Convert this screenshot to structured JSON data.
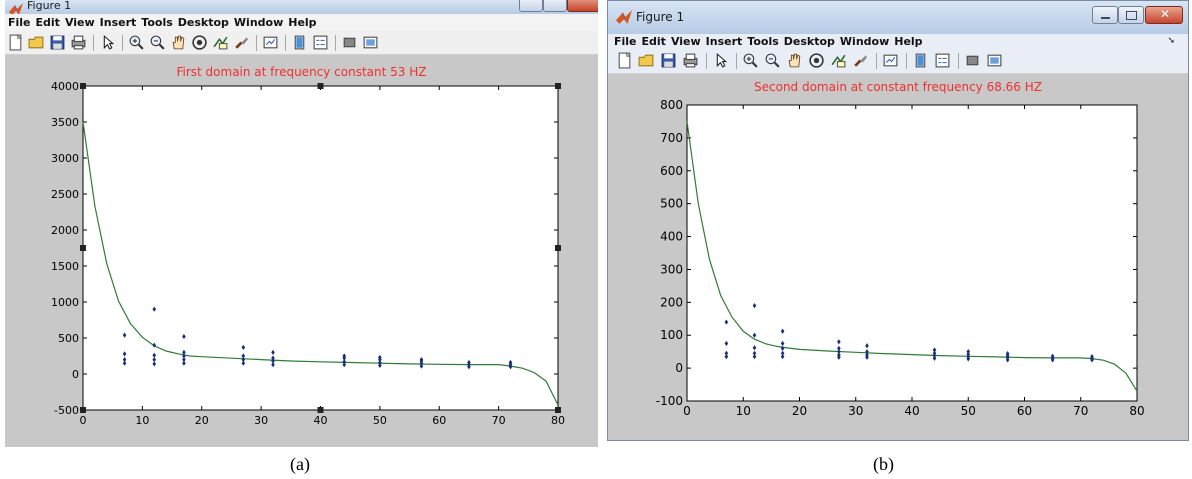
{
  "windows": [
    {
      "id": "a",
      "title": "Figure 1",
      "menu": [
        "File",
        "Edit",
        "View",
        "Insert",
        "Tools",
        "Desktop",
        "Window",
        "Help"
      ],
      "plot_title": "First domain at frequency constant 53 HZ",
      "caption": "(a)"
    },
    {
      "id": "b",
      "title": "Figure 1",
      "menu": [
        "File",
        "Edit",
        "View",
        "Insert",
        "Tools",
        "Desktop",
        "Window",
        "Help"
      ],
      "plot_title": "Second domain at constant frequency 68.66 HZ",
      "caption": "(b)"
    }
  ],
  "toolbar_icons": [
    "new-figure-icon",
    "open-file-icon",
    "save-icon",
    "print-icon",
    "edit-plot-arrow-icon",
    "zoom-in-icon",
    "zoom-out-icon",
    "pan-hand-icon",
    "rotate-3d-icon",
    "data-cursor-icon",
    "brush-icon",
    "link-plot-icon",
    "colorbar-icon",
    "legend-icon",
    "hide-plot-tools-icon",
    "show-plot-tools-icon"
  ],
  "colors": {
    "title_red": "#f03030",
    "fit_line": "#2e7d32",
    "points": "#1c2f7a",
    "window_bg": "#c8c8c8"
  },
  "chart_data": [
    {
      "type": "scatter",
      "title": "First domain at frequency constant 53 HZ",
      "xlim": [
        0,
        80
      ],
      "ylim": [
        -500,
        4000
      ],
      "xticks": [
        0,
        10,
        20,
        30,
        40,
        50,
        60,
        70,
        80
      ],
      "yticks": [
        -500,
        0,
        500,
        1000,
        1500,
        2000,
        2500,
        3000,
        3500,
        4000
      ],
      "grid": false,
      "series": [
        {
          "points": [
            [
              7,
              150
            ],
            [
              7,
              200
            ],
            [
              7,
              280
            ],
            [
              7,
              540
            ],
            [
              12,
              140
            ],
            [
              12,
              200
            ],
            [
              12,
              260
            ],
            [
              12,
              400
            ],
            [
              12,
              900
            ],
            [
              17,
              150
            ],
            [
              17,
              200
            ],
            [
              17,
              250
            ],
            [
              17,
              300
            ],
            [
              17,
              520
            ],
            [
              27,
              150
            ],
            [
              27,
              200
            ],
            [
              27,
              250
            ],
            [
              27,
              370
            ],
            [
              32,
              130
            ],
            [
              32,
              180
            ],
            [
              32,
              220
            ],
            [
              32,
              300
            ],
            [
              44,
              130
            ],
            [
              44,
              170
            ],
            [
              44,
              220
            ],
            [
              44,
              250
            ],
            [
              50,
              120
            ],
            [
              50,
              160
            ],
            [
              50,
              200
            ],
            [
              50,
              230
            ],
            [
              57,
              110
            ],
            [
              57,
              150
            ],
            [
              57,
              180
            ],
            [
              57,
              200
            ],
            [
              65,
              100
            ],
            [
              65,
              130
            ],
            [
              65,
              160
            ],
            [
              72,
              100
            ],
            [
              72,
              130
            ],
            [
              72,
              160
            ]
          ]
        },
        {
          "line": [
            [
              0,
              3500
            ],
            [
              2,
              2330
            ],
            [
              4,
              1530
            ],
            [
              6,
              1010
            ],
            [
              8,
              700
            ],
            [
              10,
              510
            ],
            [
              12,
              390
            ],
            [
              14,
              320
            ],
            [
              16,
              280
            ],
            [
              18,
              250
            ],
            [
              20,
              240
            ],
            [
              25,
              220
            ],
            [
              30,
              200
            ],
            [
              35,
              180
            ],
            [
              40,
              170
            ],
            [
              45,
              160
            ],
            [
              50,
              150
            ],
            [
              55,
              140
            ],
            [
              60,
              135
            ],
            [
              65,
              130
            ],
            [
              70,
              130
            ],
            [
              72,
              110
            ],
            [
              74,
              80
            ],
            [
              76,
              20
            ],
            [
              78,
              -100
            ],
            [
              80,
              -430
            ]
          ]
        }
      ]
    },
    {
      "type": "scatter",
      "title": "Second domain at constant frequency 68.66 HZ",
      "xlim": [
        0,
        80
      ],
      "ylim": [
        -100,
        800
      ],
      "xticks": [
        0,
        10,
        20,
        30,
        40,
        50,
        60,
        70,
        80
      ],
      "yticks": [
        -100,
        0,
        100,
        200,
        300,
        400,
        500,
        600,
        700,
        800
      ],
      "grid": false,
      "series": [
        {
          "points": [
            [
              7,
              35
            ],
            [
              7,
              45
            ],
            [
              7,
              75
            ],
            [
              7,
              140
            ],
            [
              12,
              35
            ],
            [
              12,
              45
            ],
            [
              12,
              62
            ],
            [
              12,
              100
            ],
            [
              12,
              190
            ],
            [
              17,
              35
            ],
            [
              17,
              45
            ],
            [
              17,
              60
            ],
            [
              17,
              75
            ],
            [
              17,
              112
            ],
            [
              27,
              33
            ],
            [
              27,
              40
            ],
            [
              27,
              50
            ],
            [
              27,
              60
            ],
            [
              27,
              80
            ],
            [
              32,
              33
            ],
            [
              32,
              40
            ],
            [
              32,
              50
            ],
            [
              32,
              68
            ],
            [
              44,
              30
            ],
            [
              44,
              38
            ],
            [
              44,
              45
            ],
            [
              44,
              55
            ],
            [
              50,
              28
            ],
            [
              50,
              35
            ],
            [
              50,
              42
            ],
            [
              50,
              50
            ],
            [
              57,
              25
            ],
            [
              57,
              32
            ],
            [
              57,
              38
            ],
            [
              57,
              44
            ],
            [
              65,
              25
            ],
            [
              65,
              30
            ],
            [
              65,
              36
            ],
            [
              72,
              25
            ],
            [
              72,
              30
            ],
            [
              72,
              35
            ]
          ]
        },
        {
          "line": [
            [
              0,
              750
            ],
            [
              2,
              500
            ],
            [
              4,
              330
            ],
            [
              6,
              220
            ],
            [
              8,
              155
            ],
            [
              10,
              112
            ],
            [
              12,
              88
            ],
            [
              14,
              74
            ],
            [
              16,
              66
            ],
            [
              18,
              61
            ],
            [
              20,
              57
            ],
            [
              25,
              52
            ],
            [
              30,
              48
            ],
            [
              35,
              44
            ],
            [
              40,
              41
            ],
            [
              45,
              38
            ],
            [
              50,
              36
            ],
            [
              55,
              34
            ],
            [
              60,
              32
            ],
            [
              65,
              31
            ],
            [
              70,
              31
            ],
            [
              72,
              29
            ],
            [
              74,
              24
            ],
            [
              76,
              12
            ],
            [
              78,
              -15
            ],
            [
              80,
              -70
            ]
          ]
        }
      ]
    }
  ]
}
